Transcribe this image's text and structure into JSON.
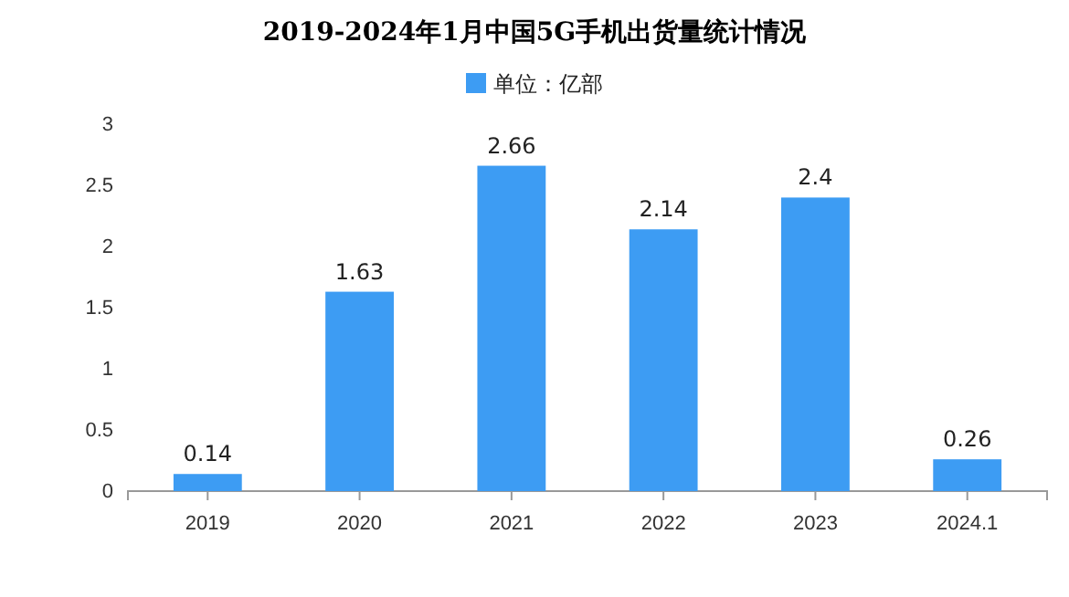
{
  "chart_data": {
    "type": "bar",
    "title": "2019-2024年1月中国5G手机出货量统计情况",
    "categories": [
      "2019",
      "2020",
      "2021",
      "2022",
      "2023",
      "2024.1"
    ],
    "series": [
      {
        "name": "单位：亿部",
        "color": "#3d9cf3",
        "values": [
          0.14,
          1.63,
          2.66,
          2.14,
          2.4,
          0.26
        ]
      }
    ],
    "ylim": [
      0,
      3
    ],
    "yticks": [
      0,
      0.5,
      1,
      1.5,
      2,
      2.5,
      3
    ],
    "data_labels": true,
    "legend": "top",
    "grid": false
  }
}
